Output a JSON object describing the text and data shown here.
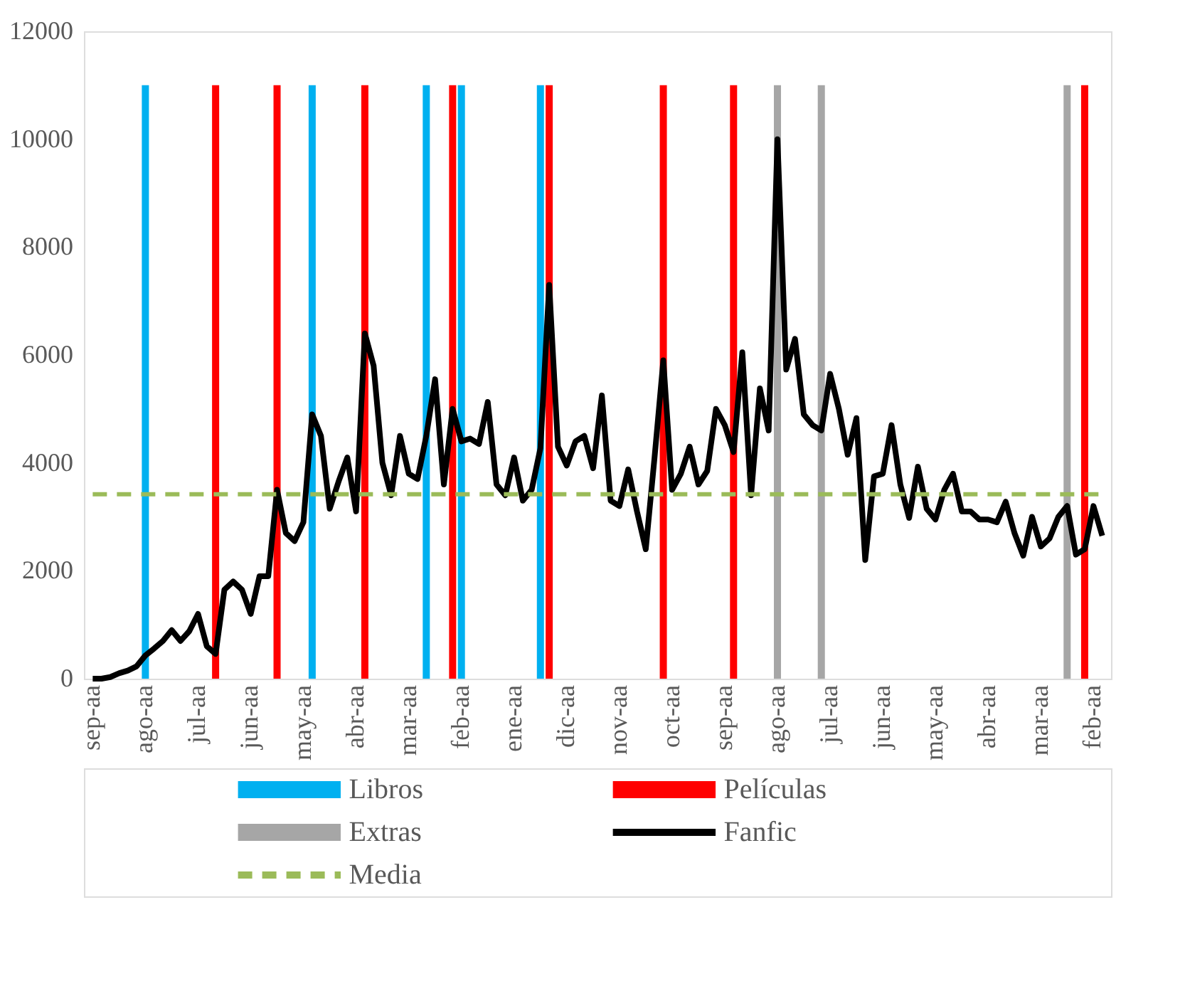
{
  "chart_data": {
    "type": "bar",
    "categories": [
      "sep-aa",
      null,
      null,
      null,
      null,
      null,
      "ago-aa",
      null,
      null,
      null,
      null,
      null,
      "jul-aa",
      null,
      null,
      null,
      null,
      null,
      "jun-aa",
      null,
      null,
      null,
      null,
      null,
      "may-aa",
      null,
      null,
      null,
      null,
      null,
      "abr-aa",
      null,
      null,
      null,
      null,
      null,
      "mar-aa",
      null,
      null,
      null,
      null,
      null,
      "feb-aa",
      null,
      null,
      null,
      null,
      null,
      "ene-aa",
      null,
      null,
      null,
      null,
      null,
      "dic-aa",
      null,
      null,
      null,
      null,
      null,
      "nov-aa",
      null,
      null,
      null,
      null,
      null,
      "oct-aa",
      null,
      null,
      null,
      null,
      null,
      "sep-aa",
      null,
      null,
      null,
      null,
      null,
      "ago-aa",
      null,
      null,
      null,
      null,
      null,
      "jul-aa",
      null,
      null,
      null,
      null,
      null,
      "jun-aa",
      null,
      null,
      null,
      null,
      null,
      "may-aa",
      null,
      null,
      null,
      null,
      null,
      "abr-aa",
      null,
      null,
      null,
      null,
      null,
      "mar-aa",
      null,
      null,
      null,
      null,
      null,
      "feb-aa",
      null
    ],
    "series": [
      {
        "name": "Libros",
        "color": "#00b0f0",
        "values": [
          null,
          null,
          null,
          null,
          null,
          null,
          11000,
          null,
          null,
          null,
          null,
          null,
          null,
          null,
          null,
          null,
          null,
          null,
          null,
          null,
          null,
          null,
          null,
          null,
          null,
          11000,
          null,
          null,
          null,
          null,
          null,
          null,
          null,
          null,
          null,
          null,
          null,
          null,
          11000,
          null,
          null,
          null,
          11000,
          null,
          null,
          null,
          null,
          null,
          null,
          null,
          null,
          11000,
          null,
          null,
          null,
          null,
          null,
          null,
          null,
          null,
          null,
          null,
          null,
          null,
          null,
          null,
          null,
          null,
          null,
          null,
          null,
          null,
          null,
          null,
          null,
          null,
          null,
          null,
          null,
          null,
          null,
          null,
          null,
          null,
          null,
          null,
          null,
          null,
          null,
          null,
          null,
          null,
          null,
          null,
          null,
          null,
          null,
          null,
          null,
          null,
          null,
          null,
          null,
          null,
          null,
          null,
          null,
          null,
          null,
          null,
          null,
          null,
          null,
          null,
          null,
          null
        ]
      },
      {
        "name": "Películas",
        "color": "#ff0000",
        "values": [
          null,
          null,
          null,
          null,
          null,
          null,
          null,
          null,
          null,
          null,
          null,
          null,
          null,
          null,
          11000,
          null,
          null,
          null,
          null,
          null,
          null,
          11000,
          null,
          null,
          null,
          null,
          null,
          null,
          null,
          null,
          null,
          11000,
          null,
          null,
          null,
          null,
          null,
          null,
          null,
          null,
          null,
          11000,
          null,
          null,
          null,
          null,
          null,
          null,
          null,
          null,
          null,
          null,
          11000,
          null,
          null,
          null,
          null,
          null,
          null,
          null,
          null,
          null,
          null,
          null,
          null,
          11000,
          null,
          null,
          null,
          null,
          null,
          null,
          null,
          11000,
          null,
          null,
          null,
          null,
          null,
          null,
          null,
          null,
          null,
          null,
          null,
          null,
          null,
          null,
          null,
          null,
          null,
          null,
          null,
          null,
          null,
          null,
          null,
          null,
          null,
          null,
          null,
          null,
          null,
          null,
          null,
          null,
          null,
          null,
          null,
          null,
          null,
          null,
          null,
          11000,
          null,
          null
        ]
      },
      {
        "name": "Extras",
        "color": "#a6a6a6",
        "values": [
          null,
          null,
          null,
          null,
          null,
          null,
          null,
          null,
          null,
          null,
          null,
          null,
          null,
          null,
          null,
          null,
          null,
          null,
          null,
          null,
          null,
          null,
          null,
          null,
          null,
          null,
          null,
          null,
          null,
          null,
          null,
          null,
          null,
          null,
          null,
          null,
          null,
          null,
          null,
          null,
          null,
          null,
          null,
          null,
          null,
          null,
          null,
          null,
          null,
          null,
          null,
          null,
          null,
          null,
          null,
          null,
          null,
          null,
          null,
          null,
          null,
          null,
          null,
          null,
          null,
          null,
          null,
          null,
          null,
          null,
          null,
          null,
          null,
          null,
          null,
          null,
          null,
          null,
          11000,
          null,
          null,
          null,
          null,
          11000,
          null,
          null,
          null,
          null,
          null,
          null,
          null,
          null,
          null,
          null,
          null,
          null,
          null,
          null,
          null,
          null,
          null,
          null,
          null,
          null,
          null,
          null,
          null,
          null,
          null,
          null,
          null,
          11000,
          null,
          null,
          null,
          null
        ]
      },
      {
        "name": "Fanfic",
        "type": "line",
        "color": "#000000",
        "values": [
          0,
          0,
          30,
          100,
          150,
          230,
          430,
          560,
          700,
          900,
          700,
          880,
          1200,
          600,
          460,
          1650,
          1800,
          1650,
          1200,
          1900,
          1900,
          3500,
          2700,
          2550,
          2900,
          4900,
          4500,
          3150,
          3650,
          4100,
          3100,
          6400,
          5800,
          4000,
          3400,
          4500,
          3800,
          3700,
          4500,
          5550,
          3600,
          5000,
          4400,
          4450,
          4350,
          5130,
          3600,
          3400,
          4100,
          3300,
          3500,
          4270,
          7300,
          4300,
          3950,
          4400,
          4500,
          3900,
          5250,
          3300,
          3200,
          3880,
          3100,
          2400,
          4100,
          5900,
          3500,
          3800,
          4300,
          3600,
          3850,
          5000,
          4700,
          4200,
          6050,
          3400,
          5380,
          4600,
          10000,
          5730,
          6300,
          4900,
          4700,
          4600,
          5650,
          5000,
          4150,
          4830,
          2200,
          3750,
          3800,
          4700,
          3600,
          2980,
          3930,
          3150,
          2950,
          3500,
          3800,
          3100,
          3100,
          2950,
          2950,
          2900,
          3280,
          2700,
          2280,
          3000,
          2450,
          2600,
          3000,
          3200,
          2300,
          2400,
          3200,
          2650
        ]
      },
      {
        "name": "Media",
        "type": "line",
        "color": "#9bbb59",
        "line_style": "dashed",
        "values": [
          3420,
          3420,
          3420,
          3420,
          3420,
          3420,
          3420,
          3420,
          3420,
          3420,
          3420,
          3420,
          3420,
          3420,
          3420,
          3420,
          3420,
          3420,
          3420,
          3420,
          3420,
          3420,
          3420,
          3420,
          3420,
          3420,
          3420,
          3420,
          3420,
          3420,
          3420,
          3420,
          3420,
          3420,
          3420,
          3420,
          3420,
          3420,
          3420,
          3420,
          3420,
          3420,
          3420,
          3420,
          3420,
          3420,
          3420,
          3420,
          3420,
          3420,
          3420,
          3420,
          3420,
          3420,
          3420,
          3420,
          3420,
          3420,
          3420,
          3420,
          3420,
          3420,
          3420,
          3420,
          3420,
          3420,
          3420,
          3420,
          3420,
          3420,
          3420,
          3420,
          3420,
          3420,
          3420,
          3420,
          3420,
          3420,
          3420,
          3420,
          3420,
          3420,
          3420,
          3420,
          3420,
          3420,
          3420,
          3420,
          3420,
          3420,
          3420,
          3420,
          3420,
          3420,
          3420,
          3420,
          3420,
          3420,
          3420,
          3420,
          3420,
          3420,
          3420,
          3420,
          3420,
          3420,
          3420,
          3420,
          3420,
          3420,
          3420,
          3420,
          3420,
          3420,
          3420,
          3420
        ]
      }
    ],
    "ylim": [
      0,
      12000
    ],
    "yticks": [
      0,
      2000,
      4000,
      6000,
      8000,
      10000,
      12000
    ],
    "legend": "bottom"
  }
}
